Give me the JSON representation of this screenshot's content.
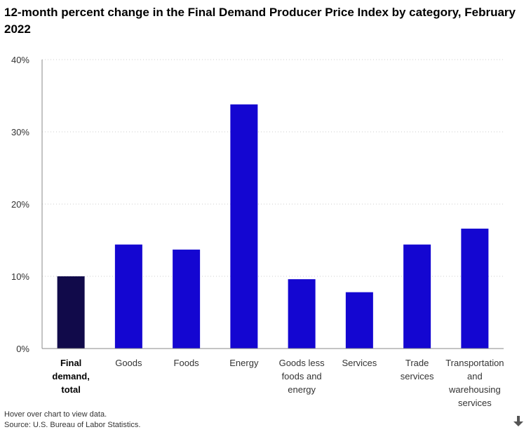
{
  "title": "12-month percent change in the Final Demand Producer Price Index by category, February 2022",
  "footer": {
    "hint": "Hover over chart to view data.",
    "source": "Source: U.S. Bureau of Labor Statistics."
  },
  "icons": {
    "download": "download-arrow-icon"
  },
  "colors": {
    "highlight_bar": "#110a4a",
    "bar": "#1406d1",
    "grid": "#cccccc",
    "axis": "#8a8a8a"
  },
  "chart_data": {
    "type": "bar",
    "title": "12-month percent change in the Final Demand Producer Price Index by category, February 2022",
    "xlabel": "",
    "ylabel": "",
    "ylim": [
      0,
      40
    ],
    "yticks": [
      0,
      10,
      20,
      30,
      40
    ],
    "ytick_labels": [
      "0%",
      "10%",
      "20%",
      "30%",
      "40%"
    ],
    "grid": true,
    "categories": [
      "Final demand, total",
      "Goods",
      "Foods",
      "Energy",
      "Goods less foods and energy",
      "Services",
      "Trade services",
      "Transportation and warehousing services"
    ],
    "category_label_lines": [
      [
        "Final",
        "demand,",
        "total"
      ],
      [
        "Goods"
      ],
      [
        "Foods"
      ],
      [
        "Energy"
      ],
      [
        "Goods less",
        "foods and",
        "energy"
      ],
      [
        "Services"
      ],
      [
        "Trade",
        "services"
      ],
      [
        "Transportation",
        "and",
        "warehousing",
        "services"
      ]
    ],
    "highlight_index": 0,
    "values": [
      10.0,
      14.4,
      13.7,
      33.8,
      9.6,
      7.8,
      14.4,
      16.6
    ]
  }
}
